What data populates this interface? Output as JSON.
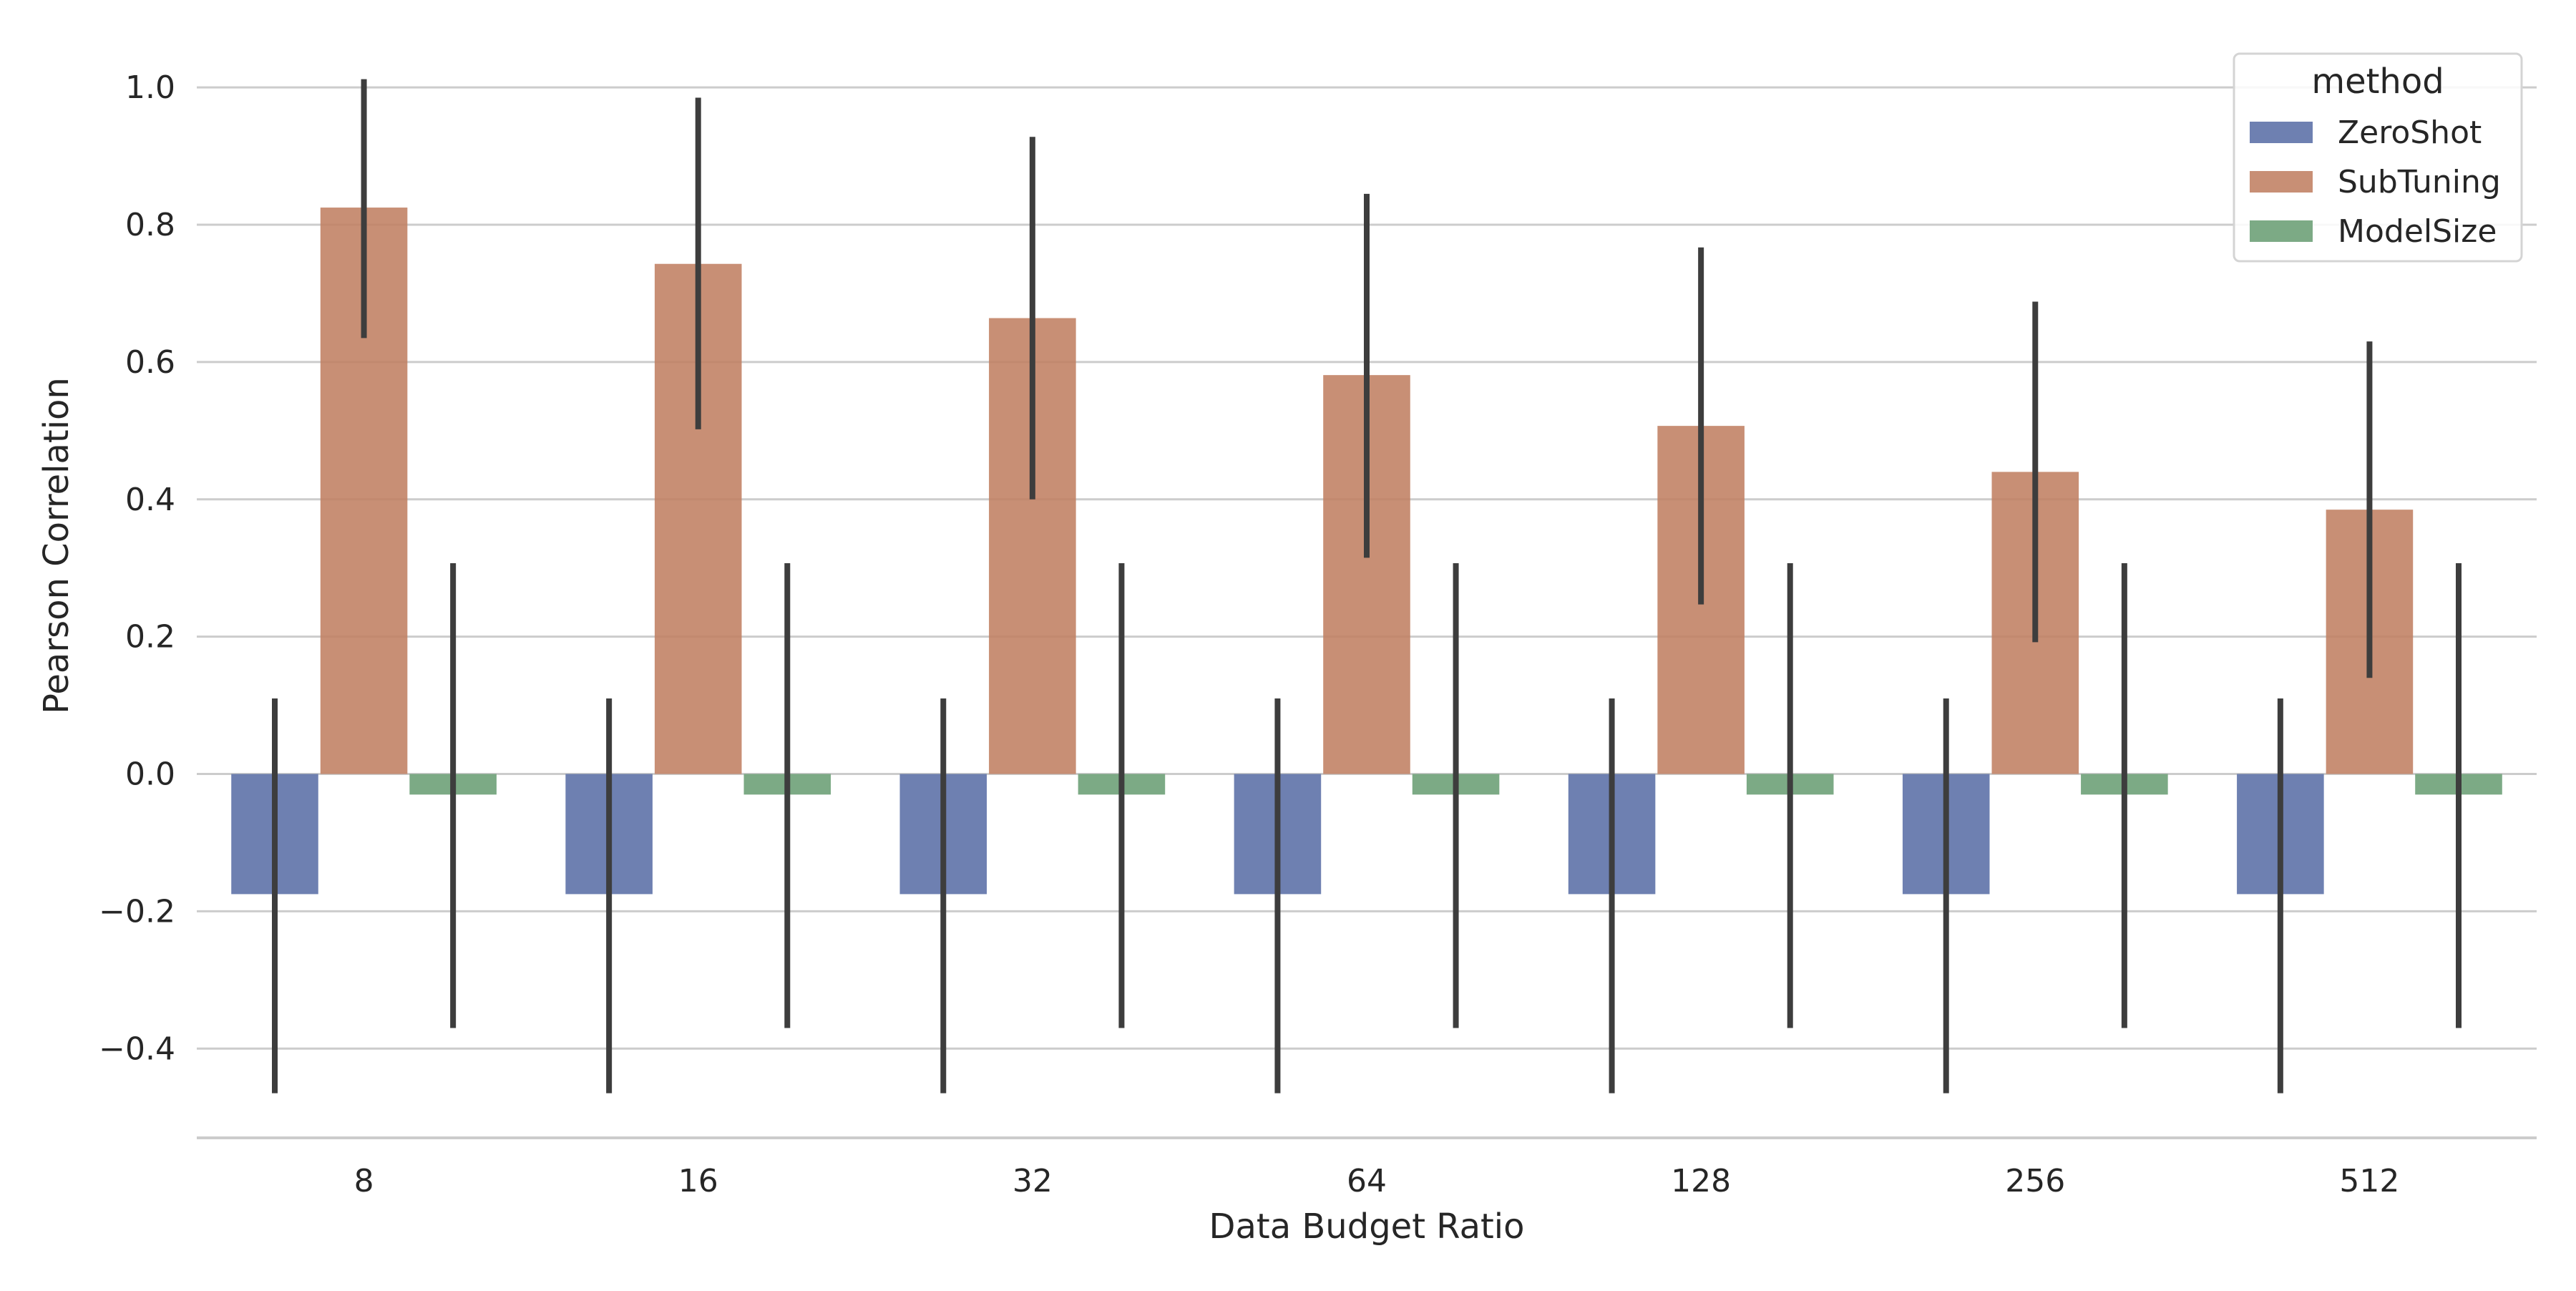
{
  "chart_data": {
    "type": "bar",
    "title": "",
    "xlabel": "Data Budget Ratio",
    "ylabel": "Pearson Correlation",
    "categories": [
      "8",
      "16",
      "32",
      "64",
      "128",
      "256",
      "512"
    ],
    "ylim": [
      -0.53,
      1.07
    ],
    "yticks": [
      -0.4,
      -0.2,
      0.0,
      0.2,
      0.4,
      0.6,
      0.8,
      1.0
    ],
    "ytick_labels": [
      "−0.4",
      "−0.2",
      "0.0",
      "0.2",
      "0.4",
      "0.6",
      "0.8",
      "1.0"
    ],
    "grid": "horizontal",
    "legend": {
      "title": "method",
      "placement": "top-right"
    },
    "series": [
      {
        "name": "ZeroShot",
        "color": "#5a6ea6",
        "values": [
          -0.175,
          -0.175,
          -0.175,
          -0.175,
          -0.175,
          -0.175,
          -0.175
        ],
        "err_low": [
          -0.465,
          -0.465,
          -0.465,
          -0.465,
          -0.465,
          -0.465,
          -0.465
        ],
        "err_high": [
          0.11,
          0.11,
          0.11,
          0.11,
          0.11,
          0.11,
          0.11
        ]
      },
      {
        "name": "SubTuning",
        "color": "#c07f62",
        "values": [
          0.825,
          0.743,
          0.664,
          0.581,
          0.507,
          0.44,
          0.385
        ],
        "err_low": [
          0.635,
          0.502,
          0.4,
          0.315,
          0.247,
          0.192,
          0.14
        ],
        "err_high": [
          1.012,
          0.985,
          0.928,
          0.845,
          0.767,
          0.688,
          0.63
        ]
      },
      {
        "name": "ModelSize",
        "color": "#6a9e74",
        "values": [
          -0.03,
          -0.03,
          -0.03,
          -0.03,
          -0.03,
          -0.03,
          -0.03
        ],
        "err_low": [
          -0.37,
          -0.37,
          -0.37,
          -0.37,
          -0.37,
          -0.37,
          -0.37
        ],
        "err_high": [
          0.307,
          0.307,
          0.307,
          0.307,
          0.307,
          0.307,
          0.307
        ]
      }
    ]
  }
}
